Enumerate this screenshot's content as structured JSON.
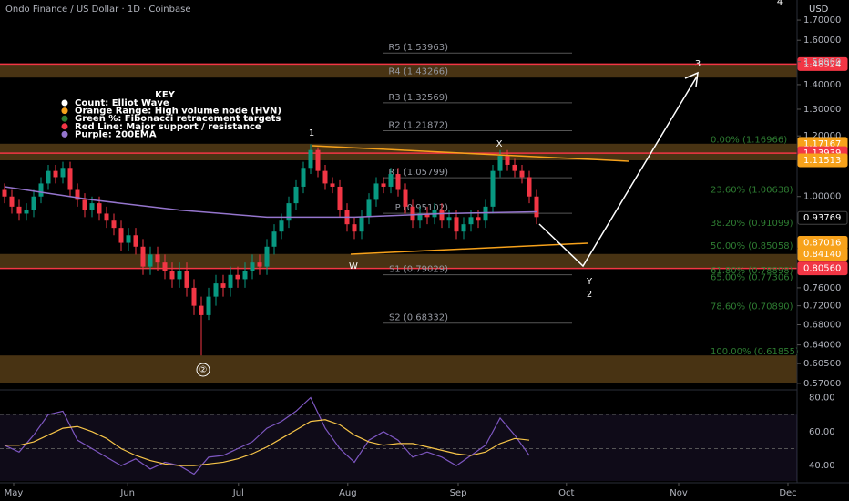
{
  "chart_data": {
    "type": "candlestick",
    "title": "Ondo Finance / US Dollar · 1D · Coinbase",
    "currency": "USD",
    "log_scale": true,
    "up_color": "#089981",
    "down_color": "#f23645",
    "xlim": [
      -0.625,
      108.75
    ],
    "xticks": [
      {
        "value": 1.25,
        "label": "May"
      },
      {
        "value": 16.9,
        "label": "Jun"
      },
      {
        "value": 32.1,
        "label": "Jul"
      },
      {
        "value": 47.1,
        "label": "Aug"
      },
      {
        "value": 62.25,
        "label": "Sep"
      },
      {
        "value": 77.1,
        "label": "Oct"
      },
      {
        "value": 92.5,
        "label": "Nov"
      },
      {
        "value": 107.5,
        "label": "Dec"
      }
    ],
    "ylim": [
      0.559,
      1.806
    ],
    "yticks": [
      {
        "value": 1.7,
        "label": "1.70000"
      },
      {
        "value": 1.6,
        "label": "1.60000"
      },
      {
        "value": 1.5,
        "label": "1.50000"
      },
      {
        "value": 1.4,
        "label": "1.40000"
      },
      {
        "value": 1.3,
        "label": "1.30000"
      },
      {
        "value": 1.2,
        "label": "1.20000"
      },
      {
        "value": 1.0,
        "label": "1.00000"
      },
      {
        "value": 0.76,
        "label": "0.76000"
      },
      {
        "value": 0.72,
        "label": "0.72000"
      },
      {
        "value": 0.68,
        "label": "0.68000"
      },
      {
        "value": 0.64,
        "label": "0.64000"
      },
      {
        "value": 0.605,
        "label": "0.60500"
      },
      {
        "value": 0.57,
        "label": "0.57000"
      }
    ],
    "open": [
      1.02,
      1.0,
      0.97,
      0.95,
      0.96,
      1.0,
      1.04,
      1.08,
      1.06,
      1.09,
      1.02,
      0.99,
      0.96,
      0.98,
      0.95,
      0.93,
      0.91,
      0.87,
      0.89,
      0.86,
      0.81,
      0.84,
      0.82,
      0.8,
      0.78,
      0.8,
      0.76,
      0.72,
      0.7,
      0.74,
      0.77,
      0.76,
      0.79,
      0.78,
      0.8,
      0.82,
      0.81,
      0.86,
      0.9,
      0.93,
      0.98,
      1.03,
      1.09,
      1.15,
      1.08,
      1.04,
      1.03,
      0.96,
      0.92,
      0.9,
      0.94,
      0.99,
      1.04,
      1.03,
      1.07,
      1.02,
      0.97,
      0.93,
      0.95,
      0.94,
      0.96,
      0.93,
      0.94,
      0.9,
      0.92,
      0.94,
      0.93,
      0.97,
      1.08,
      1.13,
      1.1,
      1.08,
      1.06,
      1.0
    ],
    "high": [
      1.04,
      1.02,
      0.99,
      0.98,
      1.02,
      1.06,
      1.1,
      1.1,
      1.11,
      1.11,
      1.04,
      1.01,
      1.0,
      1.0,
      0.97,
      0.95,
      0.93,
      0.91,
      0.91,
      0.88,
      0.86,
      0.86,
      0.84,
      0.82,
      0.82,
      0.82,
      0.78,
      0.74,
      0.76,
      0.79,
      0.79,
      0.81,
      0.81,
      0.82,
      0.84,
      0.84,
      0.88,
      0.92,
      0.95,
      1.0,
      1.05,
      1.11,
      1.17,
      1.16,
      1.1,
      1.06,
      1.05,
      0.98,
      0.94,
      0.96,
      1.01,
      1.06,
      1.06,
      1.09,
      1.09,
      1.04,
      0.99,
      0.97,
      0.97,
      0.98,
      0.98,
      0.96,
      0.96,
      0.94,
      0.96,
      0.96,
      0.99,
      1.1,
      1.15,
      1.15,
      1.12,
      1.1,
      1.08,
      1.02
    ],
    "low": [
      0.98,
      0.95,
      0.93,
      0.93,
      0.94,
      0.98,
      1.02,
      1.04,
      1.04,
      1.0,
      0.97,
      0.94,
      0.94,
      0.93,
      0.91,
      0.89,
      0.85,
      0.85,
      0.84,
      0.79,
      0.79,
      0.8,
      0.78,
      0.76,
      0.76,
      0.74,
      0.7,
      0.62,
      0.69,
      0.72,
      0.74,
      0.74,
      0.76,
      0.76,
      0.78,
      0.79,
      0.79,
      0.84,
      0.88,
      0.91,
      0.96,
      1.01,
      1.07,
      1.06,
      1.02,
      1.01,
      0.94,
      0.9,
      0.88,
      0.88,
      0.92,
      0.97,
      1.01,
      1.01,
      1.0,
      0.95,
      0.91,
      0.91,
      0.92,
      0.92,
      0.91,
      0.91,
      0.88,
      0.88,
      0.9,
      0.91,
      0.91,
      0.95,
      1.06,
      1.08,
      1.06,
      1.04,
      0.98,
      0.92
    ],
    "close": [
      1.0,
      0.97,
      0.95,
      0.96,
      1.0,
      1.04,
      1.08,
      1.06,
      1.09,
      1.02,
      0.99,
      0.96,
      0.98,
      0.95,
      0.93,
      0.91,
      0.87,
      0.89,
      0.86,
      0.81,
      0.84,
      0.82,
      0.8,
      0.78,
      0.8,
      0.76,
      0.72,
      0.7,
      0.74,
      0.77,
      0.76,
      0.79,
      0.78,
      0.8,
      0.82,
      0.81,
      0.86,
      0.9,
      0.93,
      0.98,
      1.03,
      1.09,
      1.15,
      1.08,
      1.04,
      1.03,
      0.96,
      0.92,
      0.9,
      0.94,
      0.99,
      1.04,
      1.03,
      1.07,
      1.02,
      0.97,
      0.93,
      0.95,
      0.94,
      0.96,
      0.93,
      0.94,
      0.9,
      0.92,
      0.94,
      0.93,
      0.97,
      1.08,
      1.13,
      1.1,
      1.08,
      1.06,
      1.0,
      0.94
    ],
    "ema200": {
      "color": "#9575cd",
      "x": [
        0,
        12,
        24,
        36,
        48,
        60,
        73
      ],
      "values": [
        1.03,
        0.99,
        0.96,
        0.94,
        0.94,
        0.95,
        0.955
      ]
    },
    "zones": {
      "color": "#a0702a",
      "ranges": [
        [
          1.43,
          1.49
        ],
        [
          1.115,
          1.172
        ],
        [
          0.8056,
          0.8414
        ],
        [
          0.57,
          0.62
        ]
      ]
    },
    "red_lines": {
      "color": "#f23645",
      "values": [
        1.48924,
        1.13939,
        0.8056
      ]
    },
    "price_labels": [
      {
        "value": 1.48924,
        "label": "1.48924",
        "color": "#f23645"
      },
      {
        "value": 1.17167,
        "label": "1.17167",
        "color": "#f7a21b"
      },
      {
        "value": 1.13939,
        "label": "1.13939",
        "color": "#f23645"
      },
      {
        "value": 1.11513,
        "label": "1.11513",
        "color": "#f7a21b"
      },
      {
        "value": 0.93769,
        "label": "0.93769",
        "color": "#000000"
      },
      {
        "value": 0.87016,
        "label": "0.87016",
        "color": "#f7a21b"
      },
      {
        "value": 0.8414,
        "label": "0.84140",
        "color": "#f7a21b"
      },
      {
        "value": 0.8056,
        "label": "0.80560",
        "color": "#f23645"
      }
    ],
    "pivots": [
      {
        "value": 1.53963,
        "label": "R5 (1.53963)"
      },
      {
        "value": 1.43266,
        "label": "R4 (1.43266)"
      },
      {
        "value": 1.32569,
        "label": "R3 (1.32569)"
      },
      {
        "value": 1.21872,
        "label": "R2 (1.21872)"
      },
      {
        "value": 1.05799,
        "label": "R1 (1.05799)"
      },
      {
        "value": 0.95102,
        "label": "P (0.95102)"
      },
      {
        "value": 0.79029,
        "label": "S1 (0.79029)"
      },
      {
        "value": 0.68332,
        "label": "S2 (0.68332)"
      }
    ],
    "fib_levels": [
      {
        "value": 1.16966,
        "label": "0.00% (1.16966)"
      },
      {
        "value": 1.00638,
        "label": "23.60% (1.00638)"
      },
      {
        "value": 0.91099,
        "label": "38.20% (0.91099)"
      },
      {
        "value": 0.85058,
        "label": "50.00% (0.85058)"
      },
      {
        "value": 0.78898,
        "label": "61.80% (0.78898)"
      },
      {
        "value": 0.77306,
        "label": "65.00% (0.77306)"
      },
      {
        "value": 0.7089,
        "label": "78.60% (0.70890)"
      },
      {
        "value": 0.61855,
        "label": "100.00% (0.61855)"
      }
    ],
    "wave_labels": [
      "1",
      "X",
      "W",
      "Y",
      "2",
      "3",
      "4",
      "②"
    ],
    "key": {
      "title": "KEY",
      "items": [
        {
          "text": "Count: Elliot Wave",
          "color": "#ffffff"
        },
        {
          "text": "Orange Range: High volume node (HVN)",
          "color": "#f7a21b"
        },
        {
          "text": "Green %: Fibonacci retracement targets",
          "color": "#2e7d32"
        },
        {
          "text": "Red Line: Major support / resistance",
          "color": "#f23645"
        },
        {
          "text": "Purple: 200EMA",
          "color": "#9575cd"
        }
      ]
    },
    "rsi": {
      "ylim": [
        31,
        84
      ],
      "yticks": [
        {
          "value": 80,
          "label": "80.00"
        },
        {
          "value": 60,
          "label": "60.00"
        },
        {
          "value": 40,
          "label": "40.00"
        }
      ],
      "x": [
        0,
        2,
        4,
        6,
        8,
        10,
        12,
        14,
        16,
        18,
        20,
        22,
        24,
        26,
        28,
        30,
        32,
        34,
        36,
        38,
        40,
        42,
        44,
        46,
        48,
        50,
        52,
        54,
        56,
        58,
        60,
        62,
        64,
        66,
        68,
        70,
        72
      ],
      "series": [
        {
          "color": "#7e57c2",
          "values": [
            52,
            48,
            58,
            70,
            72,
            55,
            50,
            45,
            40,
            44,
            38,
            42,
            40,
            35,
            45,
            46,
            50,
            54,
            62,
            66,
            72,
            80,
            62,
            50,
            42,
            55,
            60,
            55,
            45,
            48,
            45,
            40,
            46,
            52,
            68,
            58,
            46
          ]
        },
        {
          "color": "#f7c548",
          "values": [
            52,
            52,
            54,
            58,
            62,
            63,
            60,
            56,
            50,
            46,
            43,
            41,
            40,
            40,
            41,
            42,
            44,
            47,
            51,
            56,
            61,
            66,
            67,
            64,
            58,
            54,
            52,
            53,
            53,
            51,
            49,
            47,
            46,
            48,
            53,
            56,
            55
          ]
        }
      ]
    }
  }
}
